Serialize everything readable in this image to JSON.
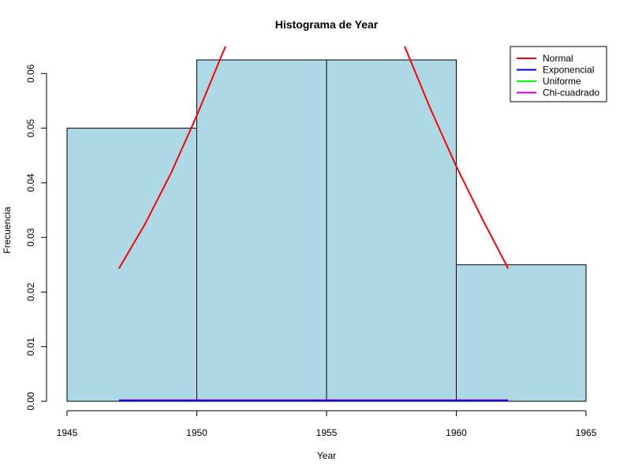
{
  "chart_data": {
    "type": "bar",
    "title": "Histograma de Year",
    "xlabel": "Year",
    "ylabel": "Frecuencia",
    "xlim": [
      1945,
      1965
    ],
    "ylim": [
      0,
      0.0625
    ],
    "x_ticks": [
      1945,
      1950,
      1955,
      1960,
      1965
    ],
    "y_ticks": [
      0.0,
      0.01,
      0.02,
      0.03,
      0.04,
      0.05,
      0.06
    ],
    "y_tick_labels": [
      "0.00",
      "0.01",
      "0.02",
      "0.03",
      "0.04",
      "0.05",
      "0.06"
    ],
    "bins": [
      {
        "start": 1945,
        "end": 1950,
        "density": 0.05
      },
      {
        "start": 1950,
        "end": 1955,
        "density": 0.0625
      },
      {
        "start": 1955,
        "end": 1960,
        "density": 0.0625
      },
      {
        "start": 1960,
        "end": 1965,
        "density": 0.025
      }
    ],
    "bar_fill": "#add8e6",
    "curves": {
      "normal": {
        "color": "#ff0000",
        "points": [
          [
            1947.0,
            0.0243
          ],
          [
            1948.0,
            0.0324
          ],
          [
            1949.0,
            0.0417
          ],
          [
            1950.0,
            0.0523
          ],
          [
            1951.0,
            0.0638
          ],
          [
            1952.0,
            0.0745
          ],
          [
            1953.0,
            0.0826
          ],
          [
            1954.0,
            0.0875
          ],
          [
            1954.5,
            0.0883
          ],
          [
            1955.0,
            0.0878
          ],
          [
            1956.0,
            0.0836
          ],
          [
            1957.0,
            0.0762
          ],
          [
            1958.0,
            0.0651
          ],
          [
            1959.0,
            0.0536
          ],
          [
            1960.0,
            0.043
          ],
          [
            1961.0,
            0.0334
          ],
          [
            1962.0,
            0.0243
          ]
        ]
      },
      "flat": [
        {
          "name": "Uniforme",
          "color": "#00ff00",
          "x0": 1947,
          "x1": 1962,
          "y": 0.00015
        },
        {
          "name": "Chi-cuadrado",
          "color": "#cc00cc",
          "x0": 1947,
          "x1": 1962,
          "y": 0.0002
        },
        {
          "name": "Exponencial",
          "color": "#0000ff",
          "x0": 1947,
          "x1": 1962,
          "y": 0.0001
        }
      ]
    },
    "legend": {
      "placement": "top-right",
      "entries": [
        {
          "label": "Normal",
          "color": "#ff0000"
        },
        {
          "label": "Exponencial",
          "color": "#0000ff"
        },
        {
          "label": "Uniforme",
          "color": "#00ff00"
        },
        {
          "label": "Chi-cuadrado",
          "color": "#cc00cc"
        }
      ]
    }
  }
}
